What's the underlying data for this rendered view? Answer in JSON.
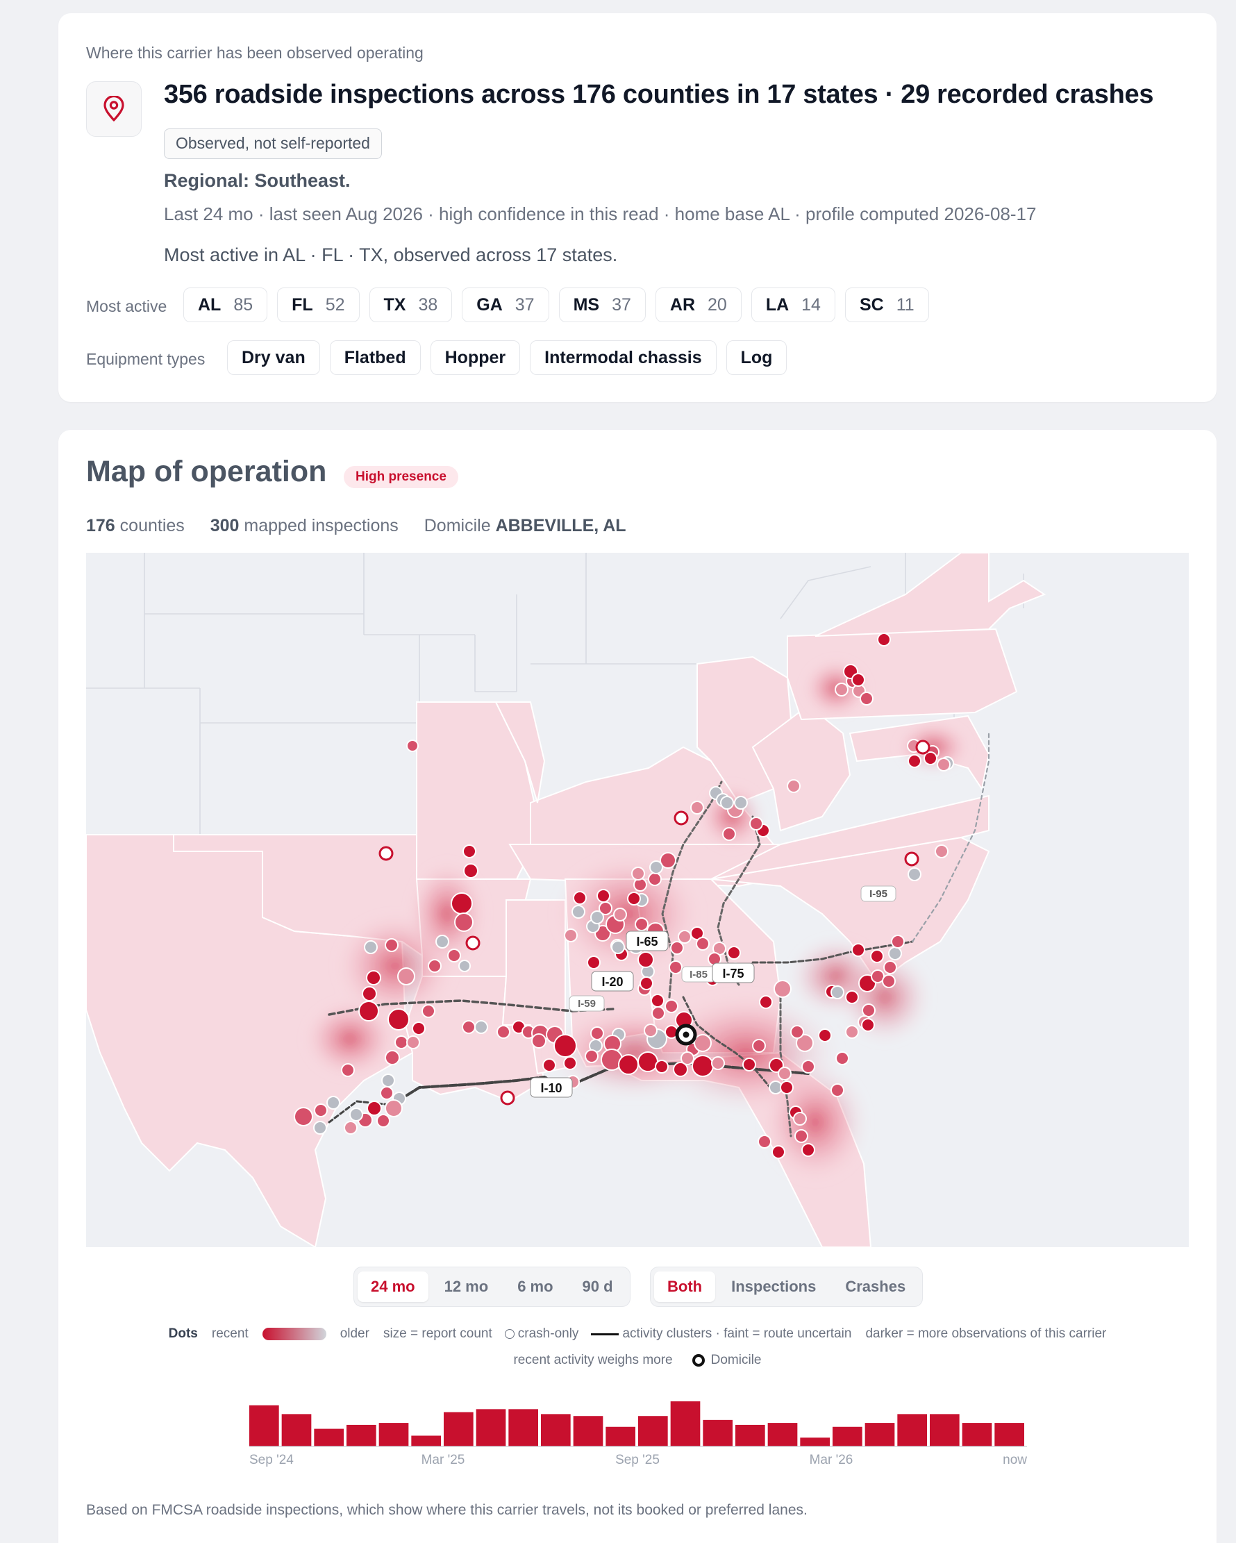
{
  "profile": {
    "eyebrow": "Where this carrier has been observed operating",
    "headline": "356 roadside inspections across 176 counties in 17 states · 29 recorded crashes",
    "observed_tag": "Observed, not self-reported",
    "regional": "Regional: Southeast.",
    "meta": "Last 24 mo · last seen Aug 2026 · high confidence in this read · home base AL · profile computed 2026-08-17",
    "summary": "Most active in AL · FL · TX, observed across 17 states.",
    "most_active_label": "Most active",
    "most_active": [
      {
        "state": "AL",
        "count": "85"
      },
      {
        "state": "FL",
        "count": "52"
      },
      {
        "state": "TX",
        "count": "38"
      },
      {
        "state": "GA",
        "count": "37"
      },
      {
        "state": "MS",
        "count": "37"
      },
      {
        "state": "AR",
        "count": "20"
      },
      {
        "state": "LA",
        "count": "14"
      },
      {
        "state": "SC",
        "count": "11"
      }
    ],
    "equipment_label": "Equipment types",
    "equipment": [
      "Dry van",
      "Flatbed",
      "Hopper",
      "Intermodal chassis",
      "Log"
    ]
  },
  "map": {
    "title": "Map of operation",
    "presence_badge": "High presence",
    "counties_value": "176",
    "counties_label": "counties",
    "inspections_value": "300",
    "inspections_label": "mapped inspections",
    "domicile_label": "Domicile",
    "domicile_value": "ABBEVILLE, AL",
    "highway_labels": [
      "I-95",
      "I-65",
      "I-20",
      "I-85",
      "I-75",
      "I-59",
      "I-10"
    ],
    "range_options": [
      "24 mo",
      "12 mo",
      "6 mo",
      "90 d"
    ],
    "range_selected": "24 mo",
    "type_options": [
      "Both",
      "Inspections",
      "Crashes"
    ],
    "type_selected": "Both",
    "colors": {
      "accent": "#c8102e",
      "older": "#c9ccd3",
      "state_fill": "#f7d9e0",
      "land": "#eef0f4"
    }
  },
  "legend": {
    "dots": "Dots",
    "recent": "recent",
    "older": "older",
    "size": "size = report count",
    "crash_only": "crash-only",
    "clusters": "activity clusters · faint = route uncertain",
    "darker": "darker = more observations of this carrier",
    "recent_weighs": "recent activity weighs more",
    "domicile": "Domicile"
  },
  "timeline": {
    "monthly_values": [
      42,
      33,
      18,
      22,
      24,
      11,
      35,
      38,
      38,
      33,
      31,
      20,
      31,
      46,
      27,
      22,
      24,
      9,
      20,
      24,
      33,
      33,
      24,
      24
    ],
    "axis_labels": [
      "Sep '24",
      "Mar '25",
      "Sep '25",
      "Mar '26",
      "now"
    ]
  },
  "footer": "Based on FMCSA roadside inspections, which show where this carrier travels, not its booked or preferred lanes."
}
